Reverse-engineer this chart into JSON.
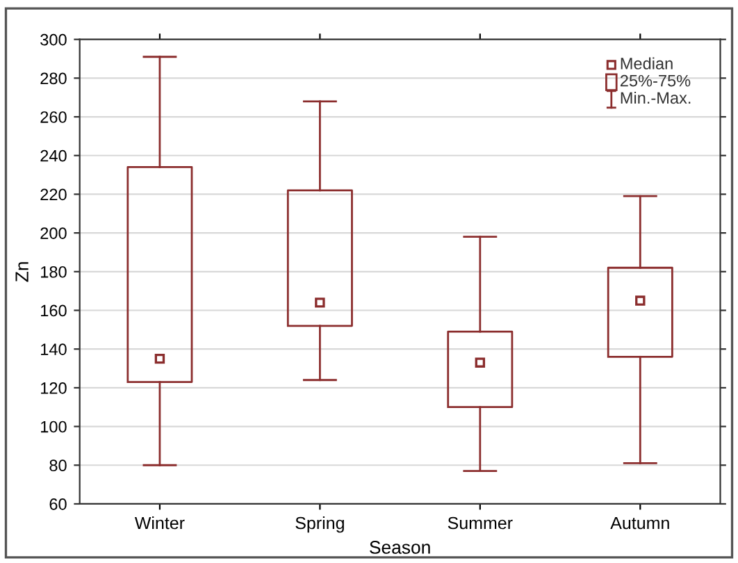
{
  "chart_data": {
    "type": "box",
    "xlabel": "Season",
    "ylabel": "Zn",
    "categories": [
      "Winter",
      "Spring",
      "Summer",
      "Autumn"
    ],
    "boxes": [
      {
        "low": 80,
        "q1": 123,
        "median": 135,
        "q3": 234,
        "high": 291
      },
      {
        "low": 124,
        "q1": 152,
        "median": 164,
        "q3": 222,
        "high": 268
      },
      {
        "low": 77,
        "q1": 110,
        "median": 133,
        "q3": 149,
        "high": 198
      },
      {
        "low": 81,
        "q1": 136,
        "median": 165,
        "q3": 182,
        "high": 219
      }
    ],
    "color": "#8b2d2d",
    "ylim": [
      60,
      300
    ],
    "yticks": [
      60,
      80,
      100,
      120,
      140,
      160,
      180,
      200,
      220,
      240,
      260,
      280,
      300
    ],
    "grid": "y",
    "marker": "square",
    "annotations": [
      "Median",
      "25%-75%",
      "Min.-Max."
    ]
  }
}
